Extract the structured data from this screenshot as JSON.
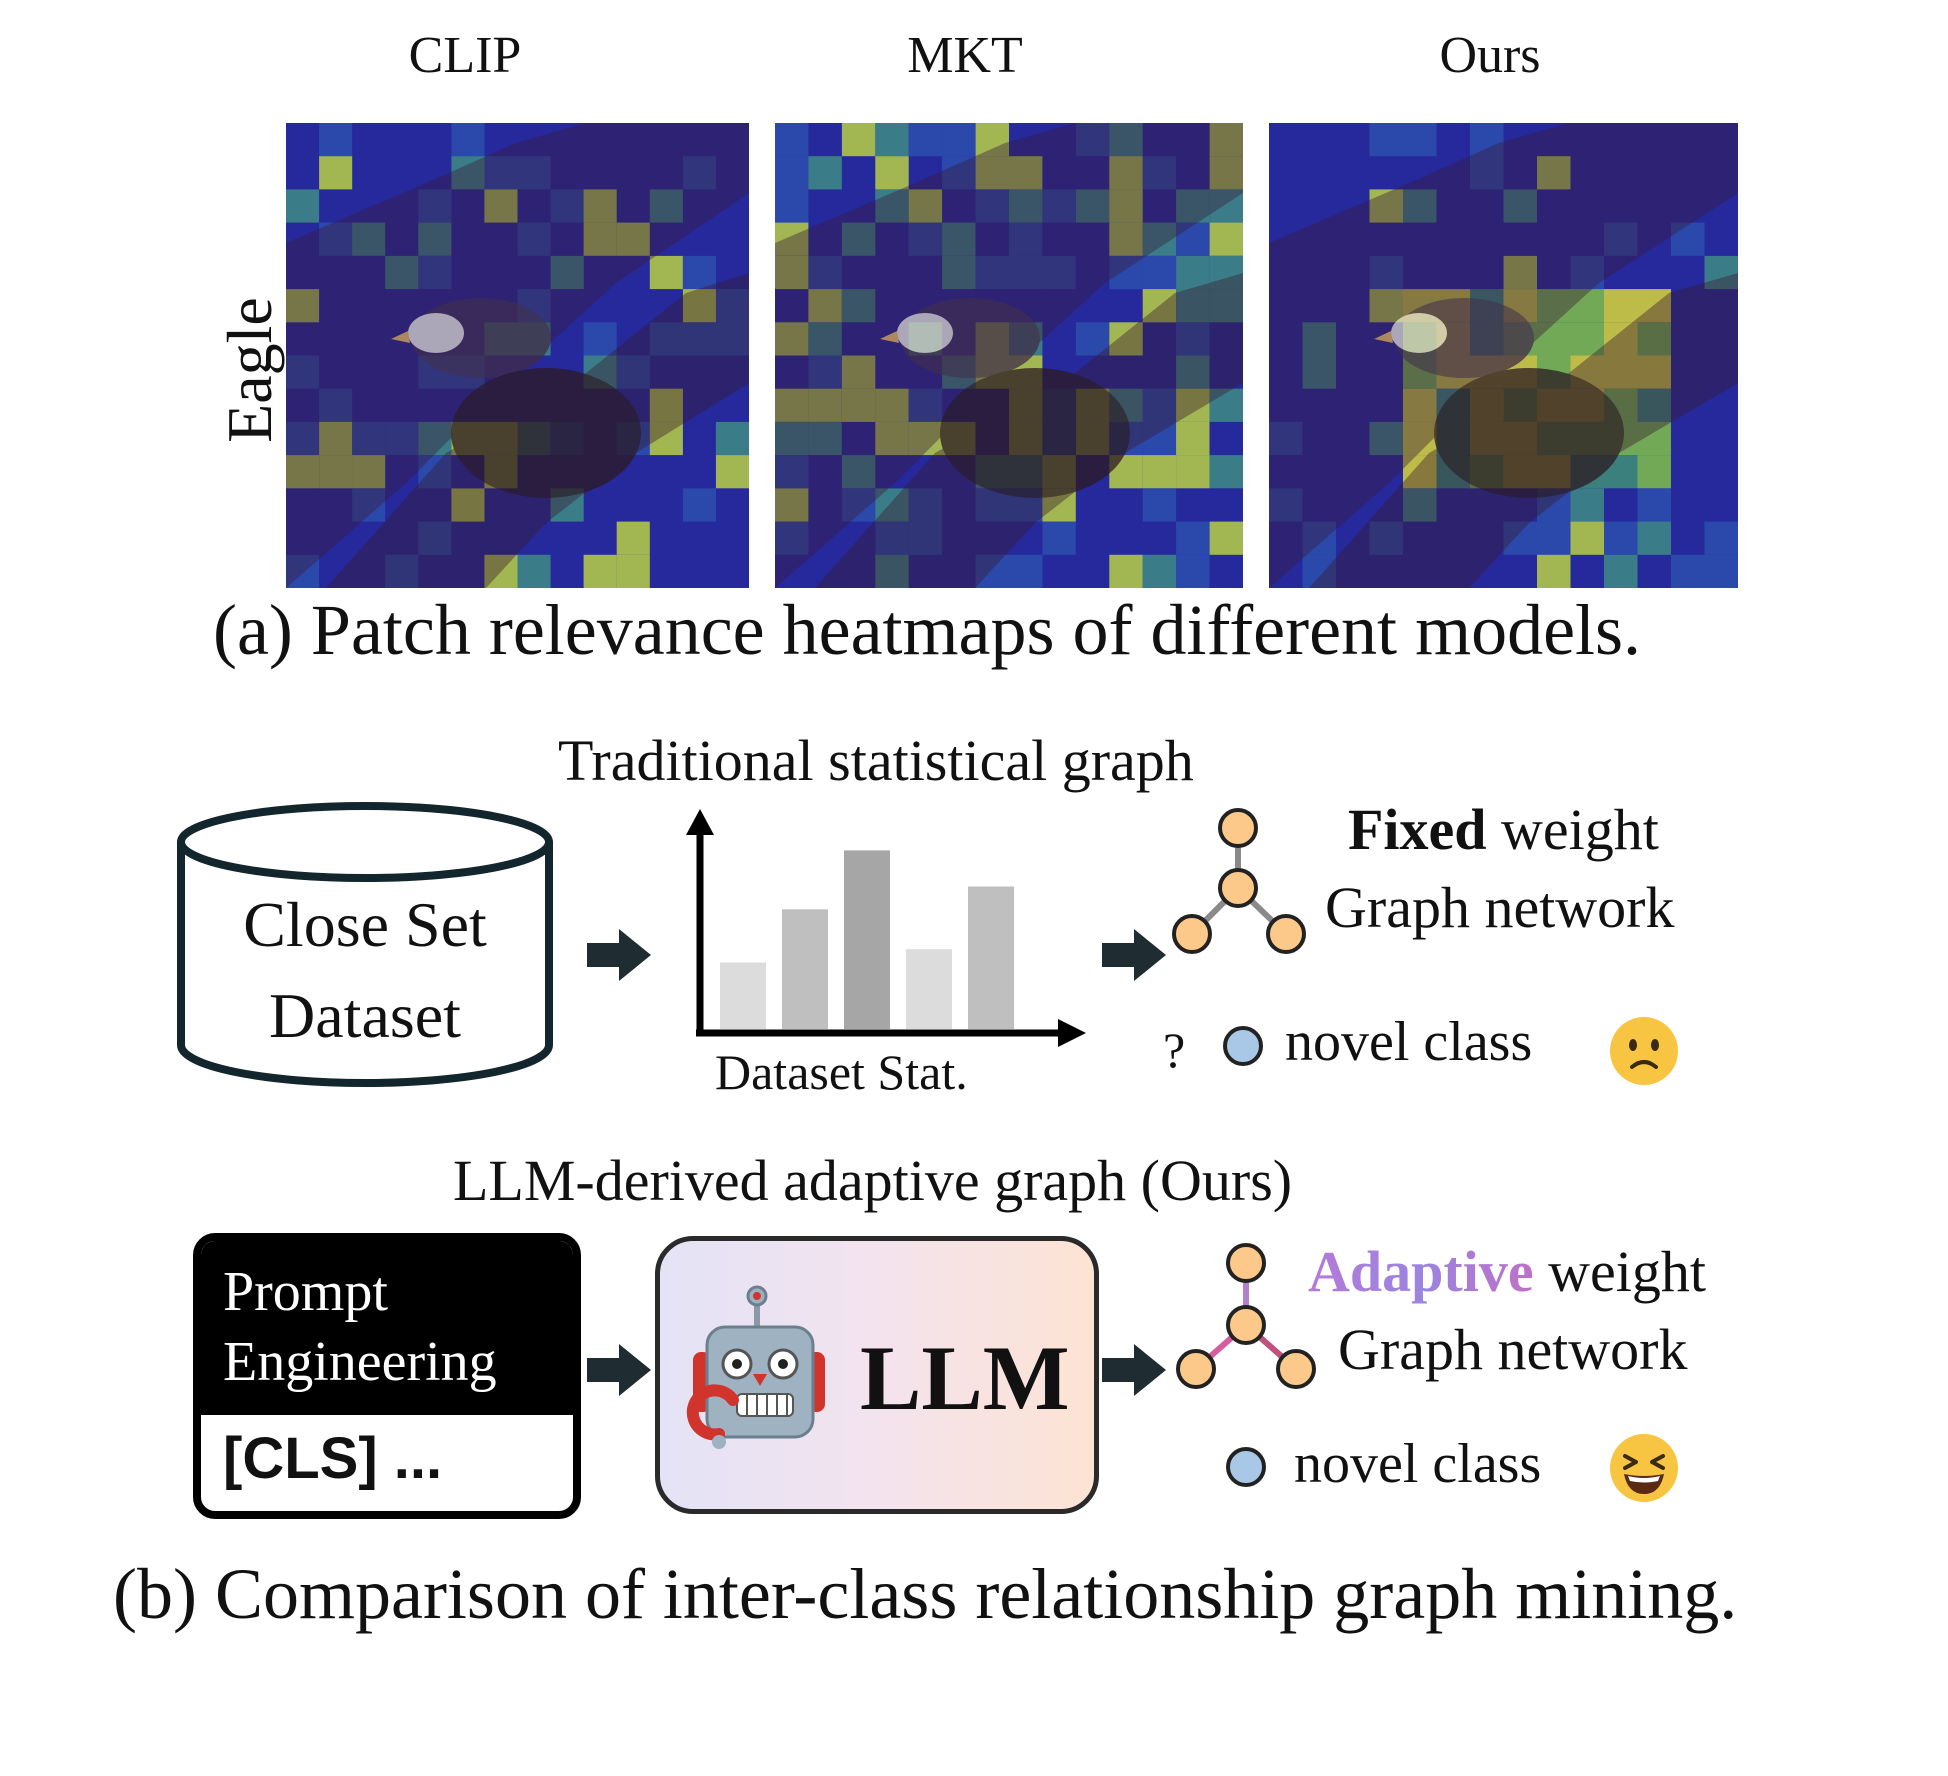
{
  "part_a": {
    "columns": [
      "CLIP",
      "MKT",
      "Ours"
    ],
    "row_label": "Eagle",
    "caption": "(a) Patch relevance heatmaps of different models."
  },
  "part_b": {
    "traditional": {
      "title": "Traditional statistical graph",
      "dataset_line1": "Close Set",
      "dataset_line2": "Dataset",
      "stat_label": "Dataset Stat.",
      "bar_values": [
        0.35,
        0.63,
        0.94,
        0.42,
        0.75
      ],
      "bar_colors": [
        "#dcdcdc",
        "#bfbfbf",
        "#a6a6a6",
        "#dcdcdc",
        "#bfbfbf"
      ],
      "weight_emph": "Fixed",
      "weight_rest": " weight",
      "graph_network": "Graph network",
      "question": "?",
      "novel_class": "novel class",
      "reaction_icon": "confused-face"
    },
    "ours": {
      "title": "LLM-derived adaptive graph (Ours)",
      "prompt_title_line1": "Prompt",
      "prompt_title_line2": "Engineering",
      "prompt_body": "[CLS] ...",
      "llm_label": "LLM",
      "weight_emph": "Adaptive",
      "weight_rest": " weight",
      "graph_network": "Graph network",
      "novel_class": "novel class",
      "reaction_icon": "laughing-face"
    },
    "caption": "(b) Comparison of inter-class relationship graph mining."
  },
  "colors": {
    "node_fill": "#fcc98a",
    "node_stroke": "#222222",
    "novel_fill": "#a9c8e8",
    "arrow": "#1f2d33",
    "heat_low": "#23299a",
    "heat_high": "#d8de3c"
  }
}
